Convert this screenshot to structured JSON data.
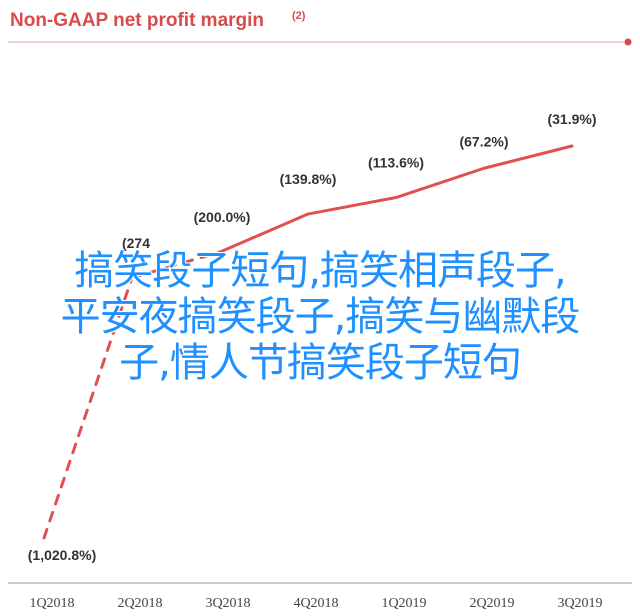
{
  "colors": {
    "accent": "#d94a4a",
    "line": "#e05050",
    "overlay_text": "#1e90ff",
    "axis": "#999999"
  },
  "overlay": {
    "line1": "搞笑段子短句,搞笑相声段子,",
    "line2": "平安夜搞笑段子,搞笑与幽默段",
    "line3": "子,情人节搞笑段子短句"
  },
  "chart_data": {
    "type": "line",
    "title": "Non-GAAP net profit margin",
    "title_note": "(2)",
    "categories": [
      "1Q2018",
      "2Q2018",
      "3Q2018",
      "4Q2018",
      "1Q2019",
      "2Q2019",
      "3Q2019"
    ],
    "series": [
      {
        "values": [
          -1020.8,
          -274,
          -200.0,
          -139.8,
          -113.6,
          -67.2,
          -31.9
        ],
        "labels": [
          "(1,020.8%)",
          "(274",
          "(200.0%)",
          "(139.8%)",
          "(113.6%)",
          "(67.2%)",
          "(31.9%)"
        ],
        "dashed_segments": [
          0,
          1
        ]
      }
    ],
    "xlabel": "",
    "ylabel": "",
    "grid": false,
    "legend": "none"
  }
}
